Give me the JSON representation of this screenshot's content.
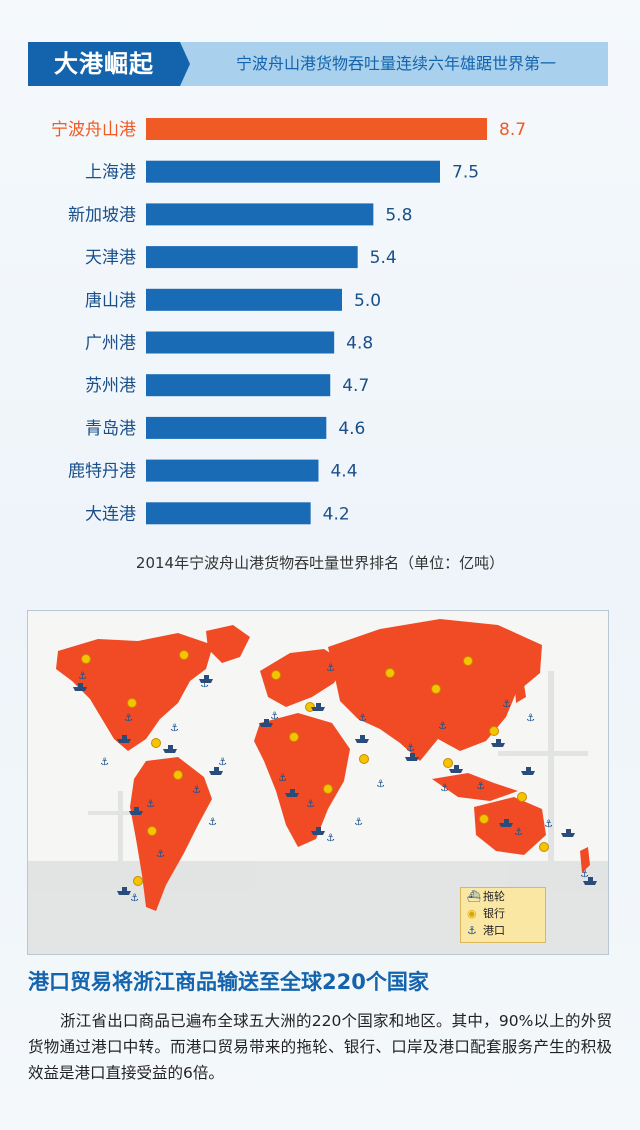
{
  "header": {
    "tag": "大港崛起",
    "subtitle": "宁波舟山港货物吞吐量连续六年雄踞世界第一"
  },
  "chart_data": {
    "type": "bar",
    "orientation": "horizontal",
    "title": "",
    "caption": "2014年宁波舟山港货物吞吐量世界排名（单位：亿吨）",
    "categories": [
      "宁波舟山港",
      "上海港",
      "新加坡港",
      "天津港",
      "唐山港",
      "广州港",
      "苏州港",
      "青岛港",
      "鹿特丹港",
      "大连港"
    ],
    "values": [
      8.7,
      7.5,
      5.8,
      5.4,
      5.0,
      4.8,
      4.7,
      4.6,
      4.4,
      4.2
    ],
    "value_labels": [
      "8.7",
      "7.5",
      "5.8",
      "5.4",
      "5.0",
      "4.8",
      "4.7",
      "4.6",
      "4.4",
      "4.2"
    ],
    "highlight_index": 0,
    "colors": {
      "highlight": "#f05a24",
      "default": "#1a6bb5",
      "highlight_label": "#f05a24",
      "default_label": "#1a4f8a"
    },
    "xlim": [
      0,
      10
    ],
    "grid": false,
    "unit": "亿吨"
  },
  "map": {
    "legend": [
      {
        "icon": "tugboat-icon",
        "label": "拖轮"
      },
      {
        "icon": "bank-icon",
        "label": "银行"
      },
      {
        "icon": "anchor-icon",
        "label": "港口"
      }
    ],
    "colors": {
      "land": "#f04b24",
      "ocean": "#f6f6f4",
      "anchor": "#1a4f8a",
      "bank": "#f5c400"
    }
  },
  "section": {
    "title": "港口贸易将浙江商品输送至全球220个国家",
    "body": "浙江省出口商品已遍布全球五大洲的220个国家和地区。其中，90%以上的外贸货物通过港口中转。而港口贸易带来的拖轮、银行、口岸及港口配套服务产生的积极效益是港口直接受益的6倍。"
  }
}
